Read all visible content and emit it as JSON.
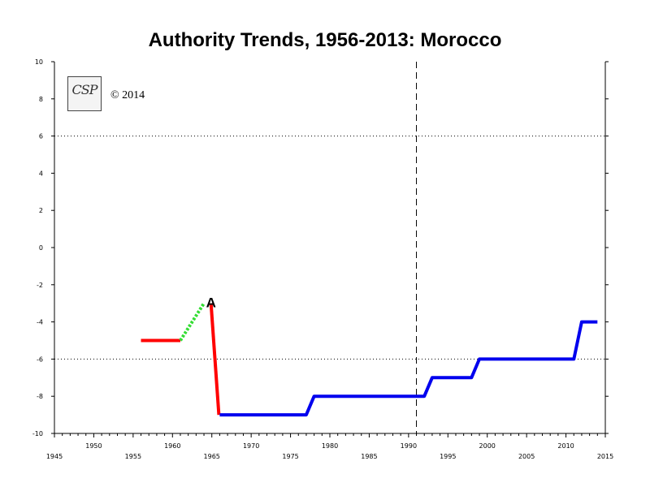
{
  "title": "Authority Trends, 1956-2013: Morocco",
  "logo": {
    "text": "CSP",
    "icon": "csp-logo-icon"
  },
  "copyright": "© 2014",
  "chart_data": {
    "type": "line",
    "title": "Authority Trends, 1956-2013: Morocco",
    "xlabel": "",
    "ylabel": "",
    "xlim": [
      1945,
      2015
    ],
    "ylim": [
      -10,
      10
    ],
    "x_major_ticks": [
      1945,
      1950,
      1955,
      1960,
      1965,
      1970,
      1975,
      1980,
      1985,
      1990,
      1995,
      2000,
      2005,
      2010,
      2015
    ],
    "y_ticks": [
      -10,
      -8,
      -6,
      -4,
      -2,
      0,
      2,
      4,
      6,
      8,
      10
    ],
    "reference_lines": [
      {
        "axis": "y",
        "value": 6,
        "style": "dotted"
      },
      {
        "axis": "y",
        "value": -6,
        "style": "dotted"
      },
      {
        "axis": "x",
        "value": 1991,
        "style": "dashed"
      }
    ],
    "series": [
      {
        "color": "#ff0000",
        "style": "solid",
        "points": [
          [
            1956,
            -5
          ],
          [
            1961,
            -5
          ]
        ]
      },
      {
        "color": "#33dd33",
        "style": "dotted",
        "points": [
          [
            1961,
            -5
          ],
          [
            1964,
            -3
          ]
        ]
      },
      {
        "color": "#ff0000",
        "style": "solid",
        "points": [
          [
            1964.9,
            -3
          ],
          [
            1965.9,
            -9
          ]
        ]
      },
      {
        "color": "#0000ee",
        "style": "solid",
        "points": [
          [
            1966,
            -9
          ],
          [
            1977,
            -9
          ],
          [
            1978,
            -8
          ],
          [
            1992,
            -8
          ],
          [
            1993,
            -7
          ],
          [
            1998,
            -7
          ],
          [
            1999,
            -6
          ],
          [
            2011,
            -6
          ],
          [
            2012,
            -4
          ],
          [
            2014,
            -4
          ]
        ]
      }
    ],
    "annotations": [
      {
        "text": "A",
        "x": 1965,
        "y": -3
      }
    ],
    "grid": false,
    "legend": "none"
  }
}
